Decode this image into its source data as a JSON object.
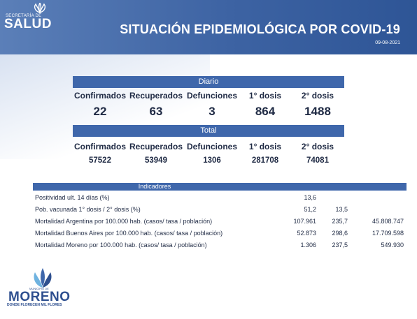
{
  "header": {
    "logo_sub": "SECRETARÍA DE",
    "logo_main": "SALUD",
    "title": "SITUACIÓN EPIDEMIOLÓGICA POR COVID-19",
    "date": "09-08-2021"
  },
  "diario": {
    "title": "Diario",
    "headers": [
      "Confirmados",
      "Recuperados",
      "Defunciones",
      "1° dosis",
      "2° dosis"
    ],
    "values": [
      "22",
      "63",
      "3",
      "864",
      "1488"
    ]
  },
  "total": {
    "title": "Total",
    "headers": [
      "Confirmados",
      "Recuperados",
      "Defunciones",
      "1° dosis",
      "2° dosis"
    ],
    "values": [
      "57522",
      "53949",
      "1306",
      "281708",
      "74081"
    ]
  },
  "indicadores": {
    "title": "Indicadores",
    "rows": [
      {
        "label": "Positividad ult. 14 días (%)",
        "v1": "13,6",
        "v2": "",
        "v3": ""
      },
      {
        "label": "Pob. vacunada 1° dosis / 2° dosis (%)",
        "v1": "51,2",
        "v2": "13,5",
        "v3": ""
      },
      {
        "label": "Mortalidad Argentina por 100.000 hab. (casos/ tasa / población)",
        "v1": "107.961",
        "v2": "235,7",
        "v3": "45.808.747"
      },
      {
        "label": "Mortalidad Buenos Aires por 100.000 hab. (casos/ tasa / población)",
        "v1": "52.873",
        "v2": "298,6",
        "v3": "17.709.598"
      },
      {
        "label": "Mortalidad Moreno por 100.000 hab. (casos/ tasa / población)",
        "v1": "1.306",
        "v2": "237,5",
        "v3": "549.930"
      }
    ]
  },
  "footer_logo": {
    "muni": "MUNICIPIO DE",
    "name": "MORENO",
    "tagline": "DONDE FLORECEN MIL FLORES"
  },
  "colors": {
    "header_blue": "#3d63a3",
    "bar_blue": "#3f67ab",
    "text_dark": "#1f2a44",
    "logo_blue": "#2e4f8f",
    "flower_light": "#6fb3e0"
  }
}
